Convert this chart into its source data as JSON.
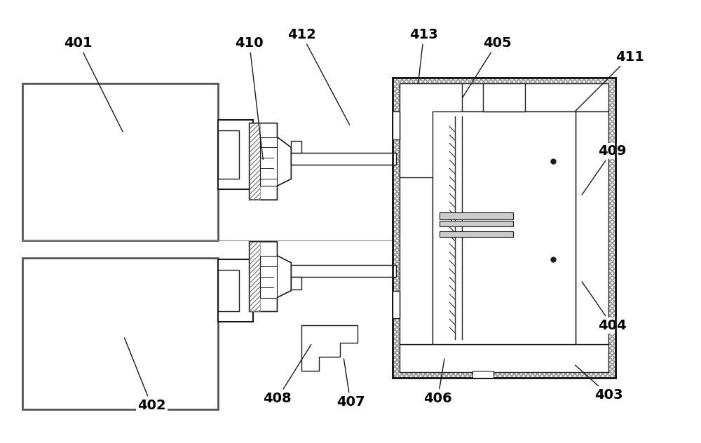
{
  "bg_color": "#ffffff",
  "lc": "#1a1a1a",
  "fig_width": 10.0,
  "fig_height": 6.32
}
